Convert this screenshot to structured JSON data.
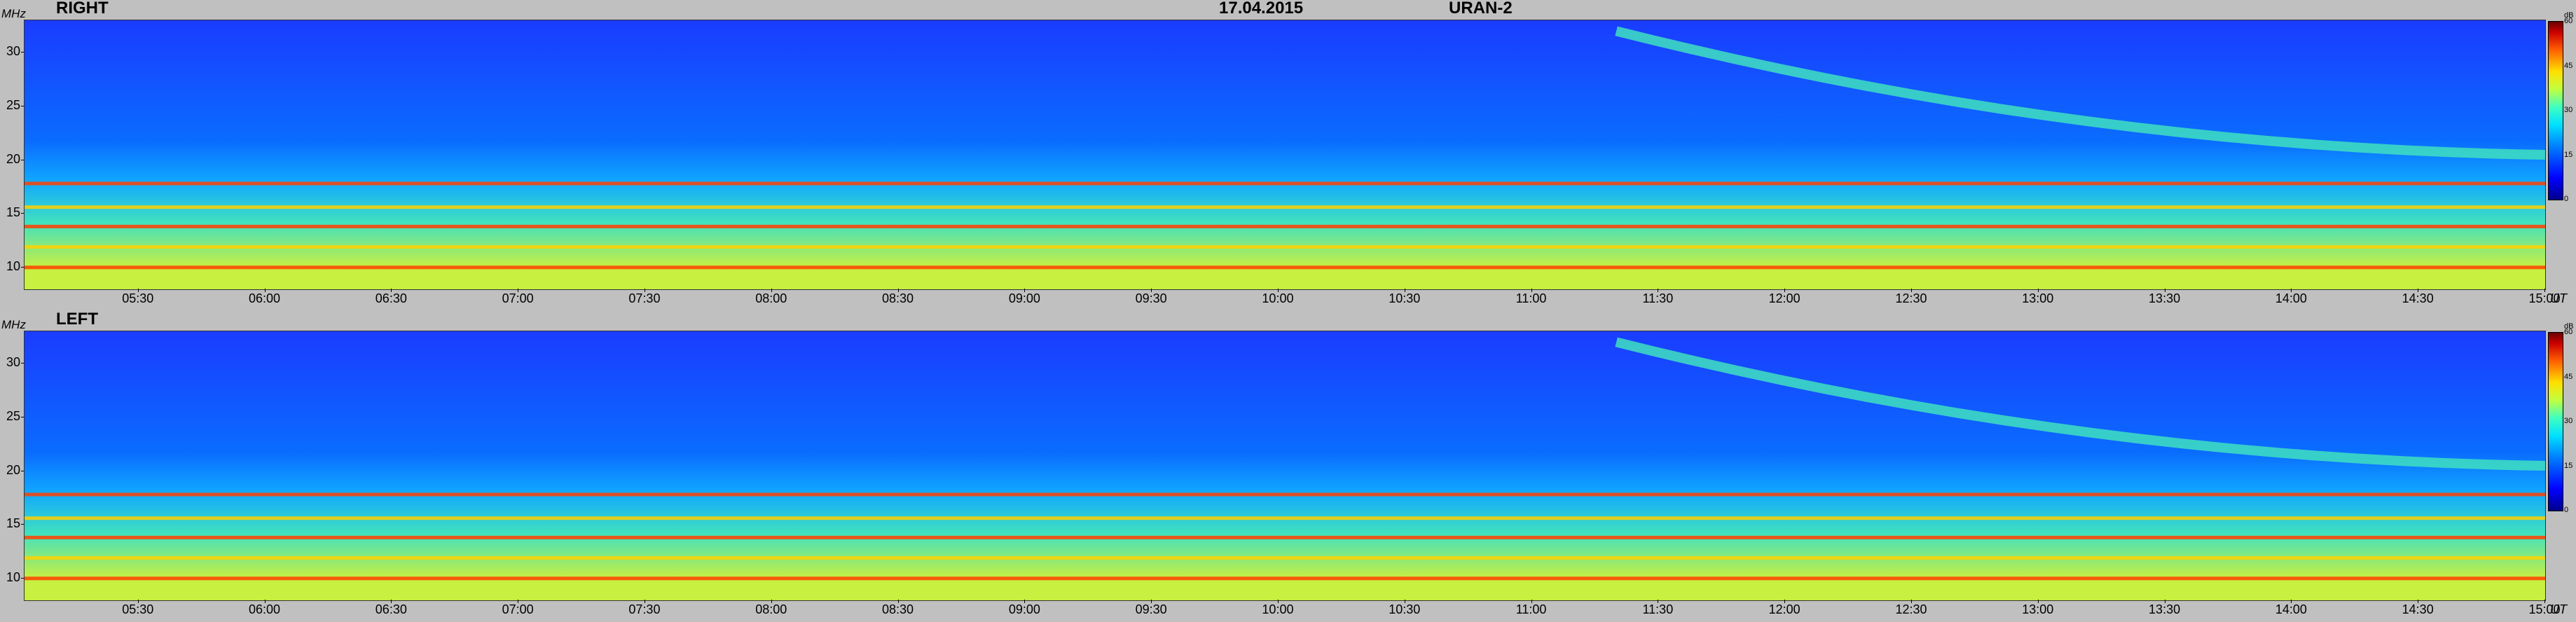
{
  "header": {
    "date": "17.04.2015",
    "instrument": "URAN-2"
  },
  "units": {
    "freq": "MHz",
    "time": "UT",
    "intensity": "dB"
  },
  "panels": [
    {
      "label": "RIGHT"
    },
    {
      "label": "LEFT"
    }
  ],
  "colorscale": {
    "min": 0,
    "max": 60,
    "ticks": [
      "60",
      "45",
      "30",
      "15",
      "0"
    ],
    "colors": [
      "#1a3cff",
      "#0a6cff",
      "#10a8ff",
      "#40e0c0",
      "#c8f040",
      "#ffd000",
      "#ff4000",
      "#b00000"
    ]
  },
  "chart_data": [
    {
      "type": "heatmap",
      "title": "RIGHT",
      "xlabel": "UT",
      "ylabel": "MHz",
      "x_ticks": [
        "05:30",
        "06:00",
        "06:30",
        "07:00",
        "07:30",
        "08:00",
        "08:30",
        "09:00",
        "09:30",
        "10:00",
        "10:30",
        "11:00",
        "11:30",
        "12:00",
        "12:30",
        "13:00",
        "13:30",
        "14:00",
        "14:30",
        "15:00"
      ],
      "y_ticks": [
        "30",
        "25",
        "20",
        "15",
        "10"
      ],
      "ylim": [
        8,
        33
      ],
      "xlim": [
        "05:03",
        "15:00"
      ],
      "zlim": [
        0,
        60
      ],
      "features": {
        "interference_bands_MHz": [
          17.8,
          15.6,
          13.8,
          11.9,
          10.0
        ],
        "drifting_burst": {
          "start": [
            "11:20",
            32
          ],
          "end": [
            "15:00",
            20.5
          ]
        }
      }
    },
    {
      "type": "heatmap",
      "title": "LEFT",
      "xlabel": "UT",
      "ylabel": "MHz",
      "x_ticks": [
        "05:30",
        "06:00",
        "06:30",
        "07:00",
        "07:30",
        "08:00",
        "08:30",
        "09:00",
        "09:30",
        "10:00",
        "10:30",
        "11:00",
        "11:30",
        "12:00",
        "12:30",
        "13:00",
        "13:30",
        "14:00",
        "14:30",
        "15:00"
      ],
      "y_ticks": [
        "30",
        "25",
        "20",
        "15",
        "10"
      ],
      "ylim": [
        8,
        33
      ],
      "xlim": [
        "05:03",
        "15:00"
      ],
      "zlim": [
        0,
        60
      ],
      "features": {
        "interference_bands_MHz": [
          17.8,
          15.6,
          13.8,
          11.9,
          10.0
        ],
        "drifting_burst": {
          "start": [
            "11:20",
            32
          ],
          "end": [
            "15:00",
            20.5
          ]
        }
      }
    }
  ]
}
